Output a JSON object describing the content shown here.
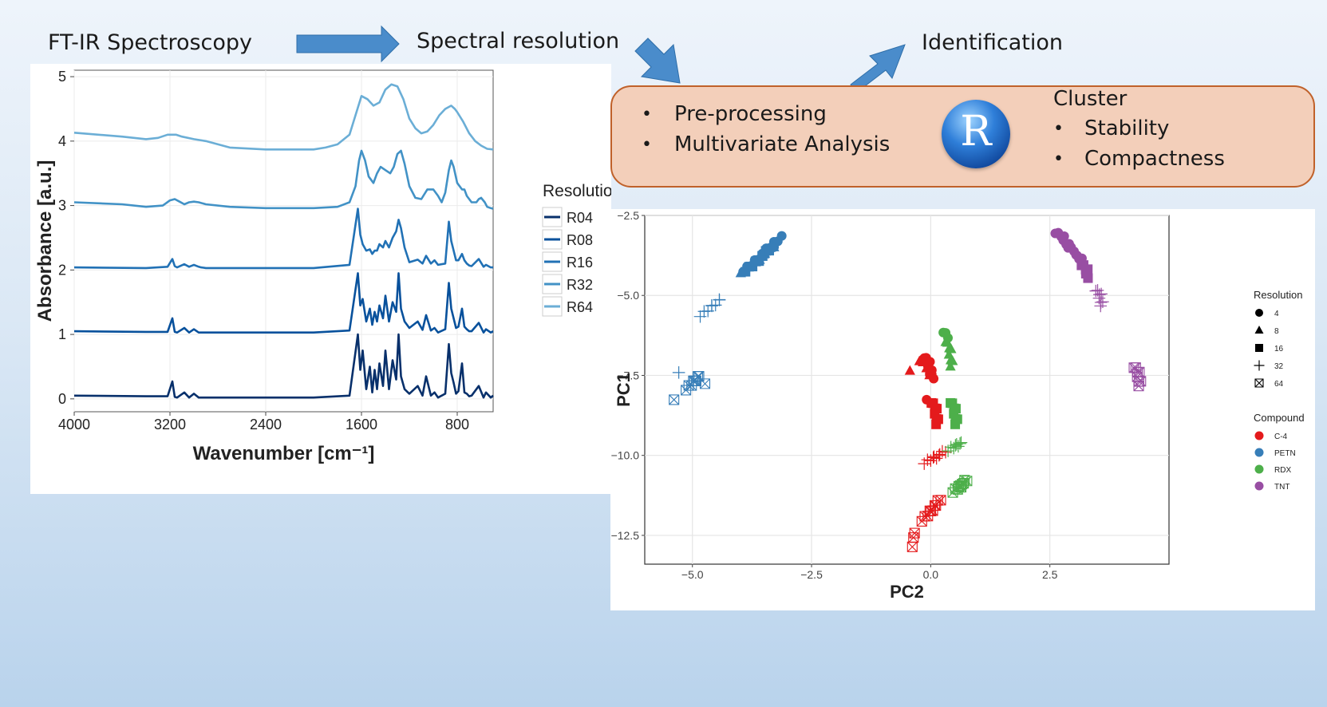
{
  "flow": {
    "step1": "FT-IR Spectroscopy",
    "step2": "Spectral resolution",
    "step3": "Identification"
  },
  "processing": {
    "items": [
      "Pre-processing",
      "Multivariate Analysis"
    ],
    "logo_letter": "R",
    "cluster_title": "Cluster",
    "cluster_items": [
      "Stability",
      "Compactness"
    ],
    "bullet": "•"
  },
  "colors": {
    "arrow": "#4a8ccb",
    "box_fill": "#f3cfba",
    "box_border": "#c0612a",
    "C-4": "#e41a1c",
    "PETN": "#377eb8",
    "RDX": "#4daf4a",
    "TNT": "#984ea3"
  },
  "chart_data": [
    {
      "type": "line",
      "title": "",
      "xlabel": "Wavenumber [cm⁻¹]",
      "ylabel": "Absorbance [a.u.]",
      "x_reversed": true,
      "xlim": [
        4000,
        500
      ],
      "ylim": [
        -0.2,
        5.1
      ],
      "x_ticks": [
        "4000",
        "3200",
        "2400",
        "1600",
        "800"
      ],
      "y_ticks": [
        "0",
        "1",
        "2",
        "3",
        "4",
        "5"
      ],
      "legend_title": "Resolution",
      "legend_position": "right",
      "grid": true,
      "series": [
        {
          "name": "R04",
          "color": "#08306b",
          "offset": 0,
          "x": [
            4000,
            3400,
            3220,
            3180,
            3160,
            3140,
            3080,
            3040,
            3000,
            2960,
            2940,
            2900,
            2000,
            1700,
            1630,
            1610,
            1590,
            1560,
            1530,
            1510,
            1490,
            1470,
            1450,
            1420,
            1400,
            1370,
            1340,
            1310,
            1290,
            1270,
            1240,
            1200,
            1130,
            1090,
            1060,
            1020,
            990,
            960,
            900,
            870,
            850,
            830,
            810,
            790,
            760,
            740,
            720,
            700,
            680,
            620,
            580,
            560,
            520,
            500
          ],
          "y": [
            0.05,
            0.04,
            0.04,
            0.27,
            0.03,
            0.02,
            0.1,
            0.02,
            0.08,
            0.02,
            0.02,
            0.02,
            0.02,
            0.05,
            1.0,
            0.45,
            0.75,
            0.15,
            0.5,
            0.1,
            0.45,
            0.15,
            0.55,
            0.2,
            0.75,
            0.15,
            0.6,
            0.3,
            1.0,
            0.35,
            0.15,
            0.08,
            0.2,
            0.05,
            0.35,
            0.05,
            0.1,
            0.02,
            0.08,
            0.85,
            0.4,
            0.25,
            0.08,
            0.12,
            0.55,
            0.1,
            0.08,
            0.04,
            0.05,
            0.2,
            0.02,
            0.1,
            0.02,
            0.05
          ]
        },
        {
          "name": "R08",
          "color": "#08519c",
          "offset": 1,
          "x": [
            4000,
            3400,
            3220,
            3180,
            3160,
            3140,
            3080,
            3040,
            3000,
            2960,
            2940,
            2900,
            2000,
            1700,
            1630,
            1610,
            1590,
            1560,
            1530,
            1510,
            1490,
            1470,
            1450,
            1420,
            1400,
            1370,
            1340,
            1310,
            1290,
            1270,
            1240,
            1200,
            1130,
            1090,
            1060,
            1020,
            990,
            960,
            900,
            870,
            850,
            830,
            810,
            790,
            760,
            740,
            720,
            700,
            680,
            620,
            580,
            560,
            520,
            500
          ],
          "y": [
            0.05,
            0.04,
            0.04,
            0.25,
            0.04,
            0.03,
            0.1,
            0.03,
            0.08,
            0.03,
            0.03,
            0.03,
            0.03,
            0.06,
            0.95,
            0.45,
            0.55,
            0.2,
            0.4,
            0.15,
            0.35,
            0.2,
            0.45,
            0.25,
            0.6,
            0.2,
            0.5,
            0.35,
            0.95,
            0.4,
            0.2,
            0.1,
            0.2,
            0.07,
            0.3,
            0.06,
            0.1,
            0.03,
            0.08,
            0.8,
            0.4,
            0.25,
            0.1,
            0.12,
            0.4,
            0.12,
            0.08,
            0.05,
            0.05,
            0.18,
            0.03,
            0.08,
            0.03,
            0.05
          ]
        },
        {
          "name": "R16",
          "color": "#2171b5",
          "offset": 2,
          "x": [
            4000,
            3400,
            3220,
            3180,
            3160,
            3140,
            3080,
            3040,
            3000,
            2960,
            2940,
            2900,
            2000,
            1700,
            1630,
            1610,
            1590,
            1560,
            1530,
            1510,
            1490,
            1470,
            1450,
            1420,
            1400,
            1370,
            1340,
            1310,
            1290,
            1270,
            1240,
            1200,
            1130,
            1090,
            1060,
            1020,
            990,
            960,
            900,
            870,
            850,
            830,
            810,
            790,
            760,
            740,
            720,
            700,
            680,
            620,
            580,
            560,
            520,
            500
          ],
          "y": [
            0.04,
            0.03,
            0.05,
            0.17,
            0.06,
            0.04,
            0.09,
            0.05,
            0.08,
            0.05,
            0.04,
            0.03,
            0.03,
            0.08,
            0.95,
            0.55,
            0.4,
            0.3,
            0.32,
            0.25,
            0.3,
            0.3,
            0.4,
            0.35,
            0.45,
            0.35,
            0.5,
            0.6,
            0.78,
            0.65,
            0.35,
            0.12,
            0.16,
            0.1,
            0.22,
            0.1,
            0.15,
            0.08,
            0.1,
            0.75,
            0.45,
            0.3,
            0.15,
            0.15,
            0.25,
            0.15,
            0.1,
            0.07,
            0.06,
            0.17,
            0.05,
            0.08,
            0.04,
            0.04
          ]
        },
        {
          "name": "R32",
          "color": "#4292c6",
          "offset": 3,
          "x": [
            4000,
            3600,
            3400,
            3260,
            3200,
            3160,
            3120,
            3080,
            3040,
            3000,
            2960,
            2900,
            2700,
            2400,
            2000,
            1800,
            1700,
            1650,
            1620,
            1600,
            1570,
            1540,
            1500,
            1470,
            1440,
            1400,
            1360,
            1330,
            1300,
            1270,
            1240,
            1200,
            1150,
            1100,
            1050,
            1000,
            960,
            930,
            900,
            870,
            850,
            830,
            800,
            760,
            740,
            720,
            680,
            640,
            620,
            600,
            570,
            550,
            520,
            500
          ],
          "y": [
            0.05,
            0.02,
            -0.02,
            0.0,
            0.08,
            0.1,
            0.06,
            0.02,
            0.05,
            0.06,
            0.05,
            0.02,
            -0.02,
            -0.04,
            -0.04,
            -0.02,
            0.05,
            0.3,
            0.7,
            0.85,
            0.7,
            0.45,
            0.35,
            0.5,
            0.6,
            0.55,
            0.5,
            0.6,
            0.8,
            0.85,
            0.65,
            0.3,
            0.12,
            0.1,
            0.25,
            0.25,
            0.15,
            0.05,
            0.2,
            0.55,
            0.7,
            0.6,
            0.35,
            0.25,
            0.25,
            0.15,
            0.05,
            0.05,
            0.1,
            0.12,
            0.05,
            -0.02,
            -0.04,
            -0.05
          ]
        },
        {
          "name": "R64",
          "color": "#6baed6",
          "offset": 4,
          "x": [
            4000,
            3600,
            3400,
            3300,
            3220,
            3150,
            3100,
            3000,
            2900,
            2700,
            2400,
            2000,
            1900,
            1800,
            1700,
            1650,
            1600,
            1550,
            1500,
            1450,
            1400,
            1350,
            1300,
            1250,
            1200,
            1150,
            1100,
            1050,
            1000,
            950,
            900,
            850,
            820,
            800,
            750,
            700,
            650,
            600,
            550,
            500
          ],
          "y": [
            0.13,
            0.07,
            0.03,
            0.05,
            0.1,
            0.1,
            0.07,
            0.03,
            0.0,
            -0.1,
            -0.13,
            -0.13,
            -0.1,
            -0.05,
            0.1,
            0.4,
            0.7,
            0.65,
            0.55,
            0.6,
            0.8,
            0.88,
            0.85,
            0.65,
            0.35,
            0.2,
            0.12,
            0.15,
            0.25,
            0.4,
            0.5,
            0.55,
            0.5,
            0.45,
            0.3,
            0.12,
            0.0,
            -0.07,
            -0.12,
            -0.13
          ]
        }
      ]
    },
    {
      "type": "scatter",
      "title": "",
      "xlabel": "PC2",
      "ylabel": "PC1",
      "xlim": [
        -6.0,
        5.0
      ],
      "ylim": [
        -13.4,
        -2.5
      ],
      "x_ticks": [
        "−5.0",
        "−2.5",
        "0.0",
        "2.5"
      ],
      "y_ticks": [
        "−2.5",
        "−5.0",
        "−7.5",
        "−10.0",
        "−12.5"
      ],
      "grid": true,
      "legend_position": "right",
      "shape_legend_title": "Resolution",
      "shape_legend": [
        {
          "label": "4",
          "shape": "circle"
        },
        {
          "label": "8",
          "shape": "triangle"
        },
        {
          "label": "16",
          "shape": "square"
        },
        {
          "label": "32",
          "shape": "plus"
        },
        {
          "label": "64",
          "shape": "boxx"
        }
      ],
      "color_legend_title": "Compound",
      "color_legend": [
        "C-4",
        "PETN",
        "RDX",
        "TNT"
      ],
      "clusters": [
        {
          "compound": "PETN",
          "shape": "circle",
          "x1": -3.9,
          "y1": -4.2,
          "x2": -3.15,
          "y2": -3.2,
          "n": 14
        },
        {
          "compound": "PETN",
          "shape": "triangle",
          "x1": -3.95,
          "y1": -4.25,
          "x2": -3.3,
          "y2": -3.5,
          "n": 10
        },
        {
          "compound": "PETN",
          "shape": "square",
          "x1": -3.85,
          "y1": -4.2,
          "x2": -3.4,
          "y2": -3.6,
          "n": 10
        },
        {
          "compound": "PETN",
          "shape": "plus",
          "x1": -4.8,
          "y1": -5.6,
          "x2": -4.4,
          "y2": -5.1,
          "n": 8
        },
        {
          "compound": "PETN",
          "shape": "boxx",
          "x1": -5.1,
          "y1": -7.9,
          "x2": -4.85,
          "y2": -7.5,
          "n": 8
        },
        {
          "compound": "PETN",
          "shape": "boxx",
          "x1": -5.35,
          "y1": -8.2,
          "x2": -5.35,
          "y2": -8.2,
          "n": 1
        },
        {
          "compound": "PETN",
          "shape": "boxx",
          "x1": -4.7,
          "y1": -7.7,
          "x2": -4.7,
          "y2": -7.7,
          "n": 1
        },
        {
          "compound": "PETN",
          "shape": "plus",
          "x1": -5.25,
          "y1": -7.35,
          "x2": -5.25,
          "y2": -7.35,
          "n": 1
        },
        {
          "compound": "TNT",
          "shape": "circle",
          "x1": 2.65,
          "y1": -3.0,
          "x2": 3.15,
          "y2": -3.9,
          "n": 14
        },
        {
          "compound": "TNT",
          "shape": "square",
          "x1": 3.2,
          "y1": -4.0,
          "x2": 3.3,
          "y2": -4.4,
          "n": 6
        },
        {
          "compound": "TNT",
          "shape": "plus",
          "x1": 3.5,
          "y1": -4.8,
          "x2": 3.6,
          "y2": -5.3,
          "n": 8
        },
        {
          "compound": "TNT",
          "shape": "boxx",
          "x1": 4.3,
          "y1": -7.2,
          "x2": 4.4,
          "y2": -7.8,
          "n": 8
        },
        {
          "compound": "C-4",
          "shape": "circle",
          "x1": -0.1,
          "y1": -6.9,
          "x2": 0.05,
          "y2": -7.6,
          "n": 10
        },
        {
          "compound": "C-4",
          "shape": "circle",
          "x1": -0.05,
          "y1": -8.2,
          "x2": -0.05,
          "y2": -8.2,
          "n": 1
        },
        {
          "compound": "C-4",
          "shape": "triangle",
          "x1": -0.4,
          "y1": -7.3,
          "x2": -0.4,
          "y2": -7.3,
          "n": 1
        },
        {
          "compound": "C-4",
          "shape": "triangle",
          "x1": -0.2,
          "y1": -7.0,
          "x2": 0.0,
          "y2": -7.5,
          "n": 5
        },
        {
          "compound": "C-4",
          "shape": "square",
          "x1": 0.05,
          "y1": -8.3,
          "x2": 0.15,
          "y2": -9.0,
          "n": 8
        },
        {
          "compound": "C-4",
          "shape": "plus",
          "x1": -0.1,
          "y1": -10.2,
          "x2": 0.3,
          "y2": -9.9,
          "n": 10
        },
        {
          "compound": "C-4",
          "shape": "boxx",
          "x1": -0.15,
          "y1": -12.0,
          "x2": 0.2,
          "y2": -11.4,
          "n": 10
        },
        {
          "compound": "C-4",
          "shape": "boxx",
          "x1": -0.35,
          "y1": -12.8,
          "x2": -0.35,
          "y2": -12.4,
          "n": 3
        },
        {
          "compound": "RDX",
          "shape": "circle",
          "x1": 0.3,
          "y1": -6.1,
          "x2": 0.35,
          "y2": -6.3,
          "n": 3
        },
        {
          "compound": "RDX",
          "shape": "triangle",
          "x1": 0.35,
          "y1": -6.4,
          "x2": 0.45,
          "y2": -7.2,
          "n": 8
        },
        {
          "compound": "RDX",
          "shape": "square",
          "x1": 0.45,
          "y1": -8.3,
          "x2": 0.55,
          "y2": -9.0,
          "n": 8
        },
        {
          "compound": "RDX",
          "shape": "plus",
          "x1": 0.4,
          "y1": -9.8,
          "x2": 0.65,
          "y2": -9.6,
          "n": 8
        },
        {
          "compound": "RDX",
          "shape": "boxx",
          "x1": 0.5,
          "y1": -11.1,
          "x2": 0.75,
          "y2": -10.8,
          "n": 10
        }
      ]
    }
  ]
}
